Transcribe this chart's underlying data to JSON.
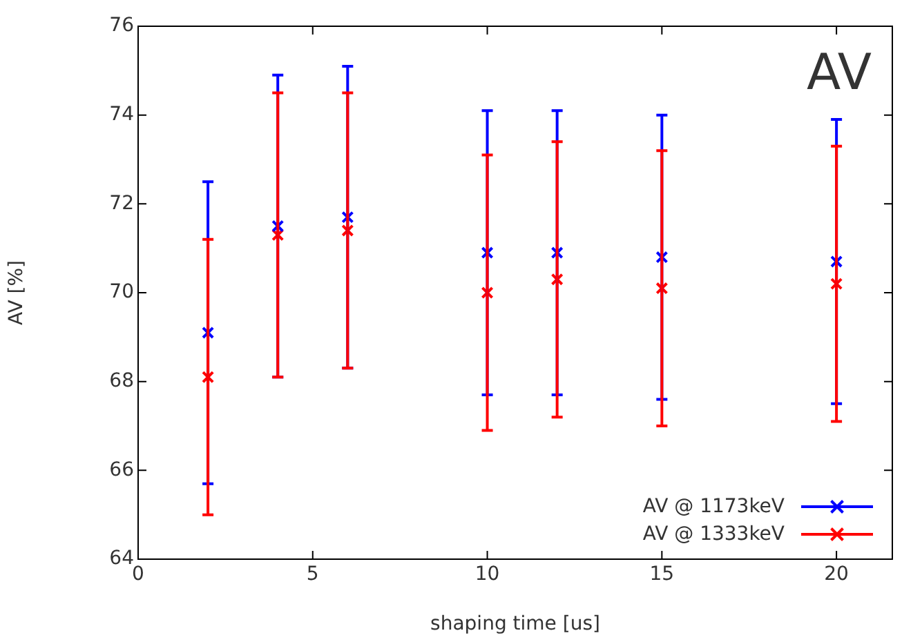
{
  "chart_data": {
    "type": "scatter",
    "xlabel": "shaping time [us]",
    "ylabel": "AV [%]",
    "annotations": [
      "AV"
    ],
    "xlim": [
      0,
      21.6
    ],
    "xticks": [
      0,
      5,
      10,
      15,
      20
    ],
    "ylim": [
      64,
      76
    ],
    "yticks": [
      64,
      66,
      68,
      70,
      72,
      74,
      76
    ],
    "grid": false,
    "legend": "bottom right",
    "marker": "cross",
    "series": [
      {
        "name": "AV @ 1173keV",
        "color": "#0000ff",
        "x": [
          2,
          4,
          6,
          10,
          12,
          15,
          20
        ],
        "values": [
          69.1,
          71.5,
          71.7,
          70.9,
          70.9,
          70.8,
          70.7
        ],
        "errors": [
          3.4,
          3.4,
          3.4,
          3.2,
          3.2,
          3.2,
          3.2
        ]
      },
      {
        "name": "AV @ 1333keV",
        "color": "#ff0000",
        "x": [
          2,
          4,
          6,
          10,
          12,
          15,
          20
        ],
        "values": [
          68.1,
          71.3,
          71.4,
          70.0,
          70.3,
          70.1,
          70.2
        ],
        "errors": [
          [
            65.0,
            71.2
          ],
          [
            68.1,
            74.5
          ],
          [
            68.3,
            74.5
          ],
          [
            66.9,
            73.1
          ],
          [
            67.2,
            73.4
          ],
          [
            67.0,
            73.2
          ],
          [
            67.1,
            73.3
          ]
        ]
      }
    ]
  }
}
